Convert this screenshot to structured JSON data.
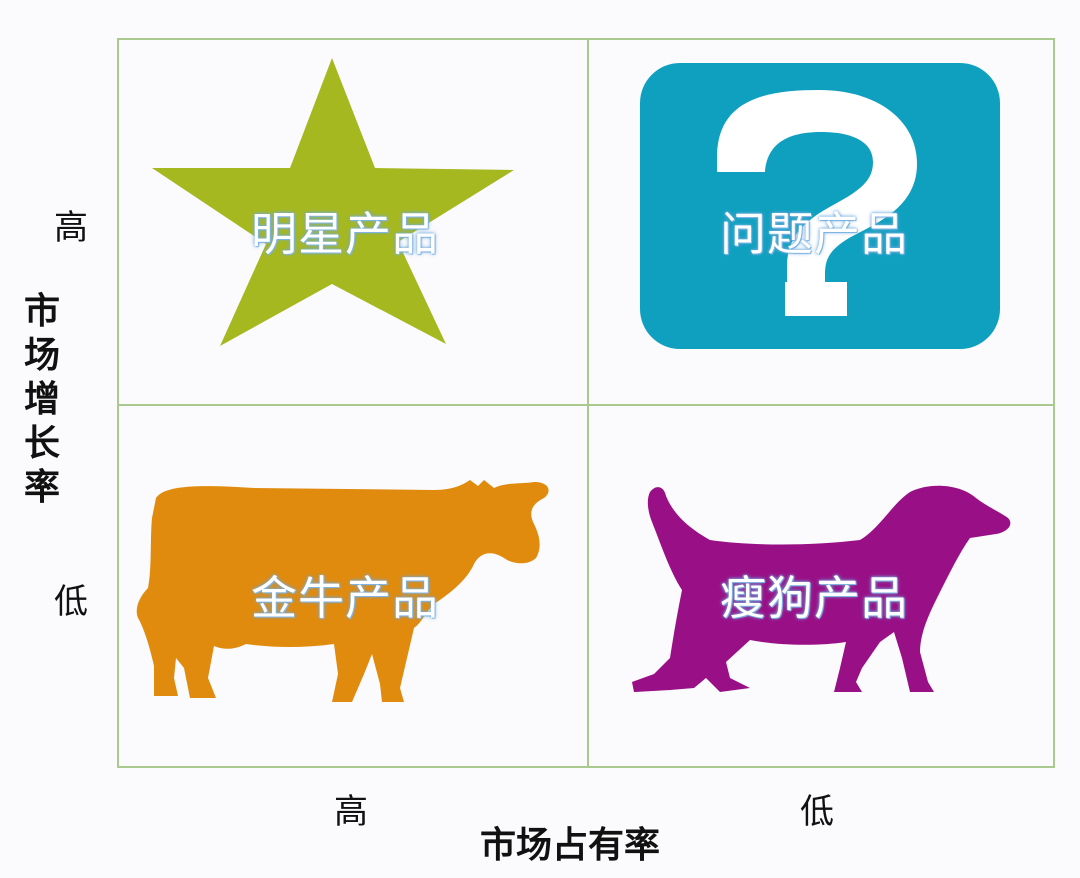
{
  "quadrants": {
    "star": {
      "label": "明星产品",
      "color": "#a6b81f"
    },
    "question": {
      "label": "问题产品",
      "color": "#0fa0bf",
      "symbol": "?"
    },
    "cow": {
      "label": "金牛产品",
      "color": "#e08b0e"
    },
    "dog": {
      "label": "瘦狗产品",
      "color": "#990f86"
    }
  },
  "y_axis": {
    "title": "市场增长率",
    "high": "高",
    "low": "低"
  },
  "x_axis": {
    "title": "市场占有率",
    "high": "高",
    "low": "低"
  }
}
